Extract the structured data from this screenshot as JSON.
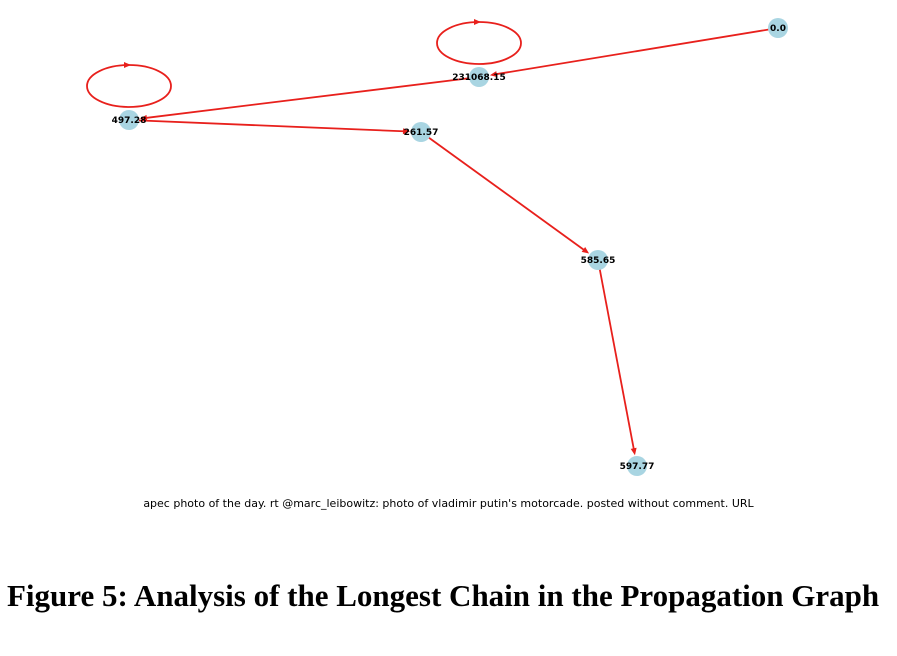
{
  "graph": {
    "colors": {
      "node": "#a9d5e2",
      "edge": "#e8201c"
    },
    "nodes": [
      {
        "id": "n0",
        "label": "0.0"
      },
      {
        "id": "n1",
        "label": "231068.15"
      },
      {
        "id": "n2",
        "label": "497.28"
      },
      {
        "id": "n3",
        "label": "261.57"
      },
      {
        "id": "n4",
        "label": "585.65"
      },
      {
        "id": "n5",
        "label": "597.77"
      }
    ],
    "edges": [
      {
        "from": "n0",
        "to": "n1"
      },
      {
        "from": "n1",
        "to": "n1"
      },
      {
        "from": "n1",
        "to": "n2"
      },
      {
        "from": "n2",
        "to": "n2"
      },
      {
        "from": "n2",
        "to": "n3"
      },
      {
        "from": "n3",
        "to": "n4"
      },
      {
        "from": "n4",
        "to": "n5"
      }
    ]
  },
  "tweet_caption": "apec photo of the day. rt @marc_leibowitz: photo of vladimir putin's motorcade. posted without comment. URL",
  "figure_caption": "Figure 5: Analysis of the Longest Chain in the Propagation Graph"
}
